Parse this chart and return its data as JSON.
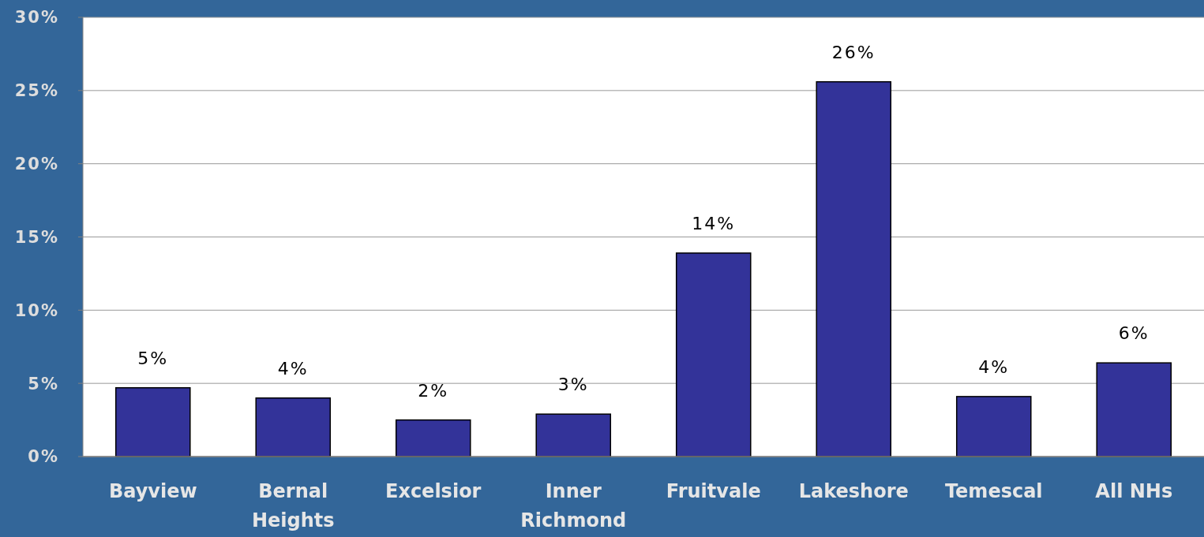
{
  "chart_data": {
    "type": "bar",
    "categories": [
      "Bayview",
      "Bernal Heights",
      "Excelsior",
      "Inner Richmond",
      "Fruitvale",
      "Lakeshore",
      "Temescal",
      "All NHs"
    ],
    "values": [
      4.7,
      4.0,
      2.5,
      2.9,
      13.9,
      25.6,
      4.1,
      6.4
    ],
    "value_labels": [
      "5%",
      "4%",
      "2%",
      "3%",
      "14%",
      "26%",
      "4%",
      "6%"
    ],
    "color": "#333399",
    "ylim": [
      0,
      30
    ],
    "yticks": [
      {
        "value": 0,
        "label": "0%"
      },
      {
        "value": 5,
        "label": "5%"
      },
      {
        "value": 10,
        "label": "10%"
      },
      {
        "value": 15,
        "label": "15%"
      },
      {
        "value": 20,
        "label": "20%"
      },
      {
        "value": 25,
        "label": "25%"
      },
      {
        "value": 30,
        "label": "30%"
      }
    ],
    "grid": "y"
  }
}
